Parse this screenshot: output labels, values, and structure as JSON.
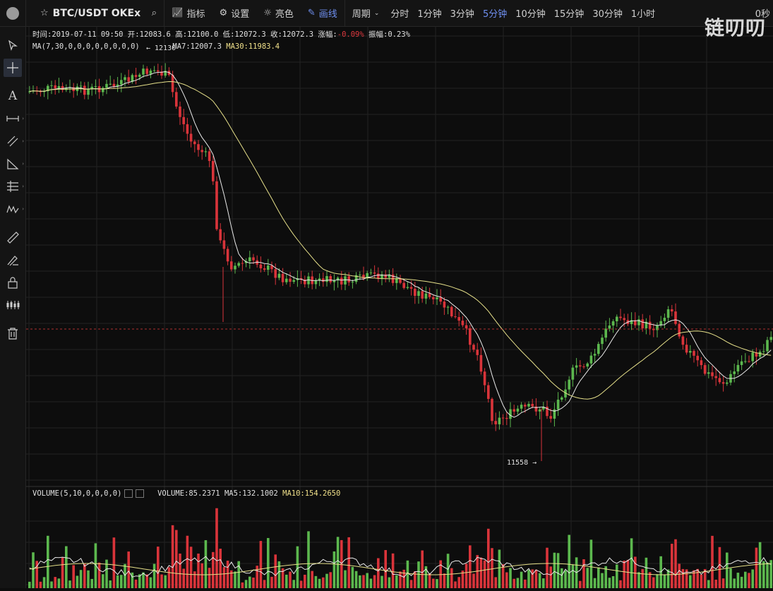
{
  "toolbar": {
    "symbol": "BTC/USDT OKEx",
    "indicator_label": "指标",
    "settings_label": "设置",
    "theme_label": "亮色",
    "draw_label": "画线",
    "period_label": "周期",
    "periods": [
      "分时",
      "1分钟",
      "3分钟",
      "5分钟",
      "10分钟",
      "15分钟",
      "30分钟",
      "1小时"
    ],
    "active_period": "5分钟",
    "right_text": "0秒"
  },
  "info": {
    "time": "时间:2019-07-11 09:50",
    "open": "开:12083.6",
    "high": "高:12100.0",
    "low": "低:12072.3",
    "close": "收:12072.3",
    "change_label": "涨幅:",
    "change_value": "-0.09%",
    "amplitude": "振幅:0.23%",
    "ma_title": "MA(7,30,0,0,0,0,0,0,0,0)",
    "ma7": "MA7:12007.3",
    "ma30": "MA30:11983.4",
    "vol_title": "VOLUME(5,10,0,0,0,0)",
    "volume": "VOLUME:85.2371",
    "ma5": "MA5:132.1002",
    "ma10": "MA10:154.2650"
  },
  "watermark": "链叨叨",
  "high_marker": "← 12130",
  "low_marker": "11558 →",
  "colors": {
    "up": "#5cb84e",
    "down": "#d9343a",
    "ma7": "#e8e8e8",
    "ma30": "#e6e08a",
    "accent": "#6f8ff0"
  },
  "chart_data": {
    "type": "candlestick",
    "series": [
      {
        "name": "BTC/USDT"
      }
    ],
    "ylim": [
      11540,
      12160
    ]
  }
}
